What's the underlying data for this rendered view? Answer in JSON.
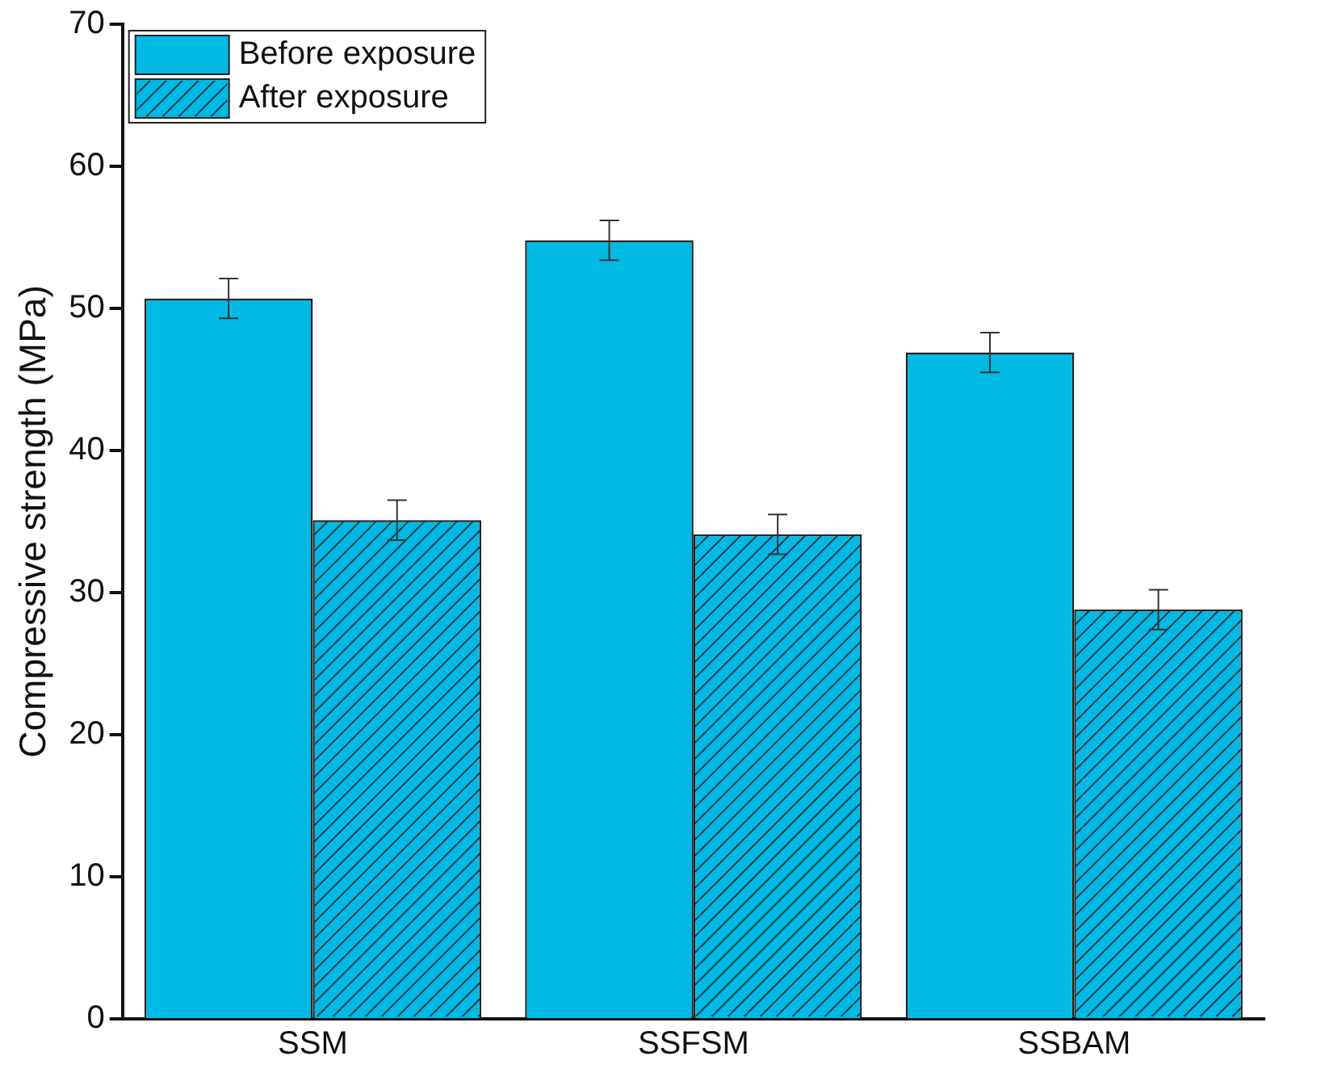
{
  "chart_data": {
    "type": "bar",
    "ylabel": "Compressive strength (MPa)",
    "categories": [
      "SSM",
      "SSFSM",
      "SSBAM"
    ],
    "series": [
      {
        "name": "Before exposure",
        "color": "#00b9e4",
        "values": [
          50.7,
          54.8,
          46.9
        ],
        "errors": [
          1.4,
          1.4,
          1.4
        ]
      },
      {
        "name": "After exposure",
        "color": "#00b9e4",
        "values": [
          35.1,
          34.1,
          28.8
        ],
        "errors": [
          1.4,
          1.4,
          1.4
        ]
      }
    ],
    "ylim": [
      0,
      70
    ],
    "yticks": [
      0,
      10,
      20,
      30,
      40,
      50,
      60,
      70
    ],
    "grid": false,
    "legend": "top left"
  }
}
